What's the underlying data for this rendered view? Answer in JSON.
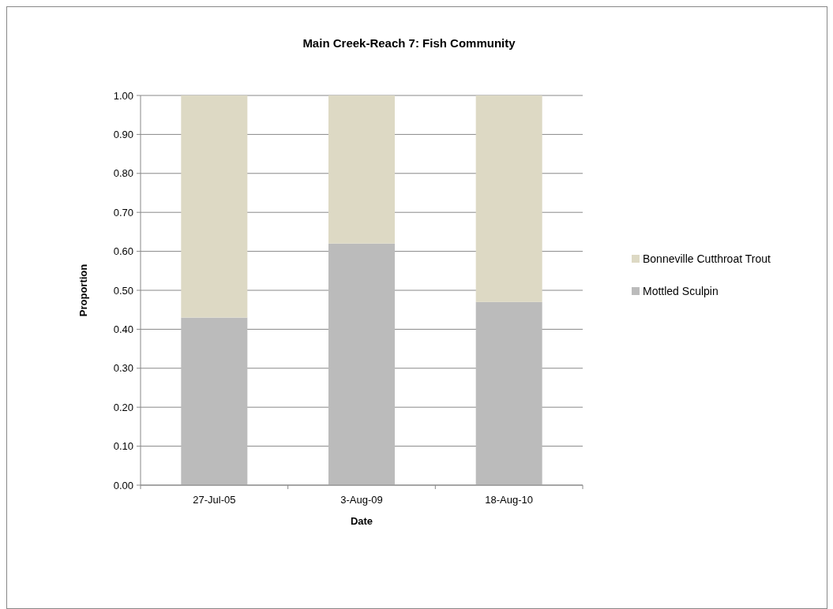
{
  "chart_data": {
    "type": "bar",
    "title": "Main Creek-Reach 7: Fish Community",
    "xlabel": "Date",
    "ylabel": "Proportion",
    "categories": [
      "27-Jul-05",
      "3-Aug-09",
      "18-Aug-10"
    ],
    "stacked": true,
    "series": [
      {
        "name": "Mottled Sculpin",
        "color": "#bbbbbb",
        "values": [
          0.43,
          0.62,
          0.47
        ]
      },
      {
        "name": "Bonneville Cutthroat Trout",
        "color": "#ddd9c4",
        "values": [
          0.57,
          0.38,
          0.53
        ]
      }
    ],
    "ylim": [
      0,
      1
    ],
    "yticks": [
      {
        "value": 0,
        "label": "0.00"
      },
      {
        "value": 0.1,
        "label": "0.10"
      },
      {
        "value": 0.2,
        "label": "0.20"
      },
      {
        "value": 0.3,
        "label": "0.30"
      },
      {
        "value": 0.4,
        "label": "0.40"
      },
      {
        "value": 0.5,
        "label": "0.50"
      },
      {
        "value": 0.6,
        "label": "0.60"
      },
      {
        "value": 0.7,
        "label": "0.70"
      },
      {
        "value": 0.8,
        "label": "0.80"
      },
      {
        "value": 0.9,
        "label": "0.90"
      },
      {
        "value": 1,
        "label": "1.00"
      }
    ],
    "grid": "y",
    "legend": "right"
  }
}
